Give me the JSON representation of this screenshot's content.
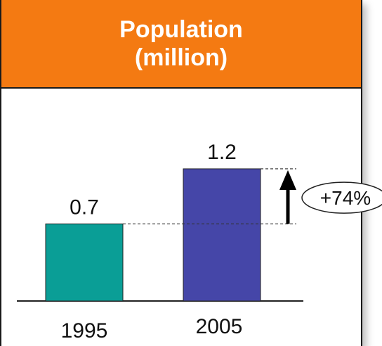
{
  "chart_data": {
    "type": "bar",
    "title": "Population\n(million)",
    "categories": [
      "1995",
      "2005"
    ],
    "values": [
      0.7,
      1.2
    ],
    "value_labels": [
      "0.7",
      "1.2"
    ],
    "colors": [
      "#0a9e96",
      "#4546a8"
    ],
    "change_label": "+74%",
    "header_color": "#f47a12",
    "ylim": [
      0,
      1.25
    ],
    "grid": false,
    "legend": "none"
  }
}
